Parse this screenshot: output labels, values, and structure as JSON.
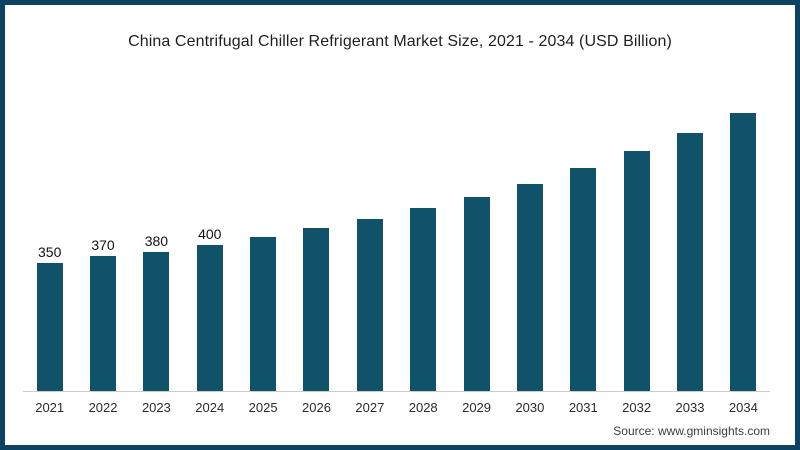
{
  "source_label": "Source: www.gminsights.com",
  "colors": {
    "bar": "#0f5269",
    "frame": "#0d4263",
    "axis": "#cccccc"
  },
  "chart_data": {
    "type": "bar",
    "title": "China Centrifugal Chiller Refrigerant Market Size, 2021 - 2034 (USD Billion)",
    "categories": [
      "2021",
      "2022",
      "2023",
      "2024",
      "2025",
      "2026",
      "2027",
      "2028",
      "2029",
      "2030",
      "2031",
      "2032",
      "2033",
      "2034"
    ],
    "values": [
      350,
      370,
      380,
      400,
      420,
      445,
      470,
      500,
      530,
      565,
      610,
      655,
      705,
      760
    ],
    "data_labels": [
      "350",
      "370",
      "380",
      "400",
      "",
      "",
      "",
      "",
      "",
      "",
      "",
      "",
      "",
      ""
    ],
    "xlabel": "",
    "ylabel": "",
    "ylim": [
      0,
      800
    ],
    "grid": false,
    "legend": false,
    "y_axis_visible": false,
    "bar_color": "#0f5269"
  }
}
